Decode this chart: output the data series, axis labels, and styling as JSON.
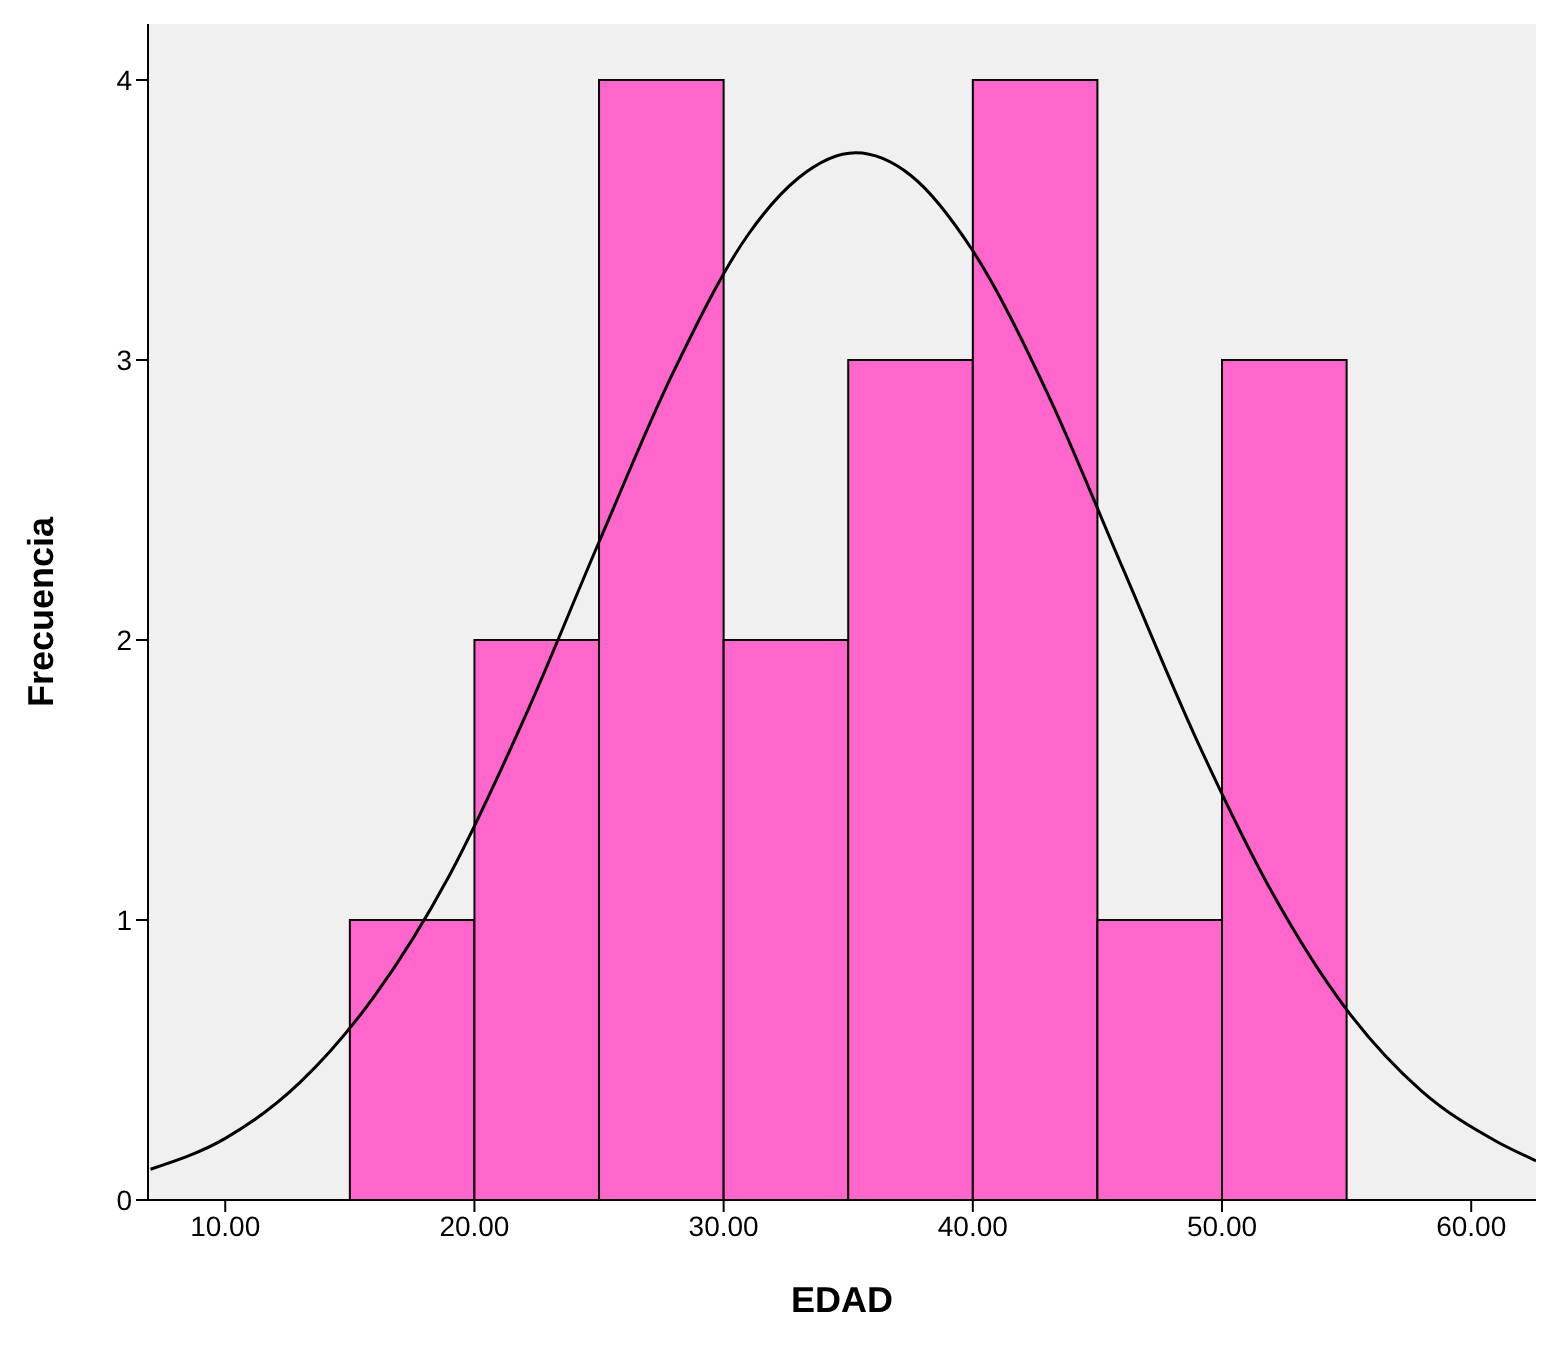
{
  "chart_data": {
    "type": "histogram",
    "xlabel": "EDAD",
    "ylabel": "Frecuencia",
    "bins": [
      15,
      20,
      25,
      30,
      35,
      40,
      45,
      50,
      55
    ],
    "values": [
      1,
      2,
      4,
      2,
      3,
      4,
      1,
      3
    ],
    "color": "#ff66cc",
    "series": [
      {
        "type": "line",
        "color": "#000000",
        "x": [
          7,
          10,
          13,
          16,
          19,
          22,
          25,
          28,
          31,
          33,
          35.3,
          37.5,
          40,
          43,
          46,
          49,
          52,
          55,
          58,
          61,
          62.6
        ],
        "values": [
          0.11,
          0.22,
          0.42,
          0.73,
          1.16,
          1.72,
          2.35,
          2.96,
          3.45,
          3.65,
          3.74,
          3.66,
          3.39,
          2.88,
          2.26,
          1.64,
          1.1,
          0.68,
          0.39,
          0.21,
          0.14
        ]
      }
    ],
    "xlim": [
      6.9,
      62.6
    ],
    "ylim": [
      0,
      4.2
    ],
    "xticks": [
      {
        "value": 10,
        "label": "10.00"
      },
      {
        "value": 20,
        "label": "20.00"
      },
      {
        "value": 30,
        "label": "30.00"
      },
      {
        "value": 40,
        "label": "40.00"
      },
      {
        "value": 50,
        "label": "50.00"
      },
      {
        "value": 60,
        "label": "60.00"
      }
    ],
    "yticks": [
      0,
      1,
      2,
      3,
      4
    ],
    "grid": false,
    "legend": false,
    "marker": "none"
  }
}
